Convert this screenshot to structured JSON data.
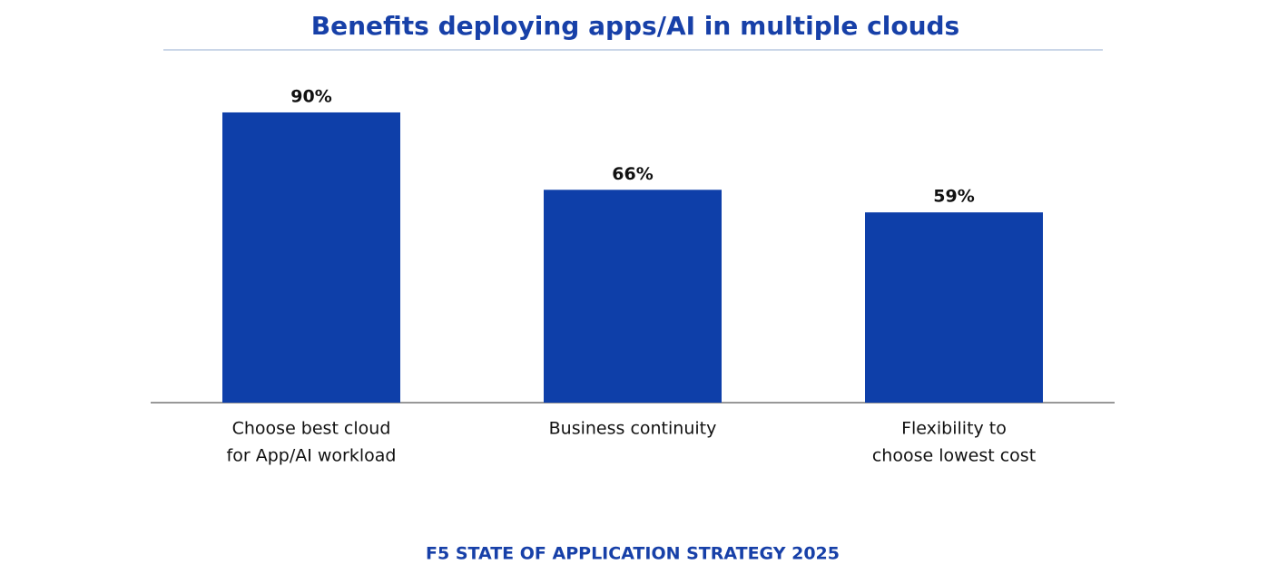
{
  "chart_data": {
    "type": "bar",
    "title": "Benefits deploying apps/AI in multiple clouds",
    "categories": [
      [
        "Choose best cloud",
        "for App/AI workload"
      ],
      [
        "Business continuity"
      ],
      [
        "Flexibility to",
        "choose lowest cost"
      ]
    ],
    "values": [
      90,
      66,
      59
    ],
    "value_labels": [
      "90%",
      "66%",
      "59%"
    ],
    "color": "#0e3fa9",
    "ylim": [
      0,
      100
    ],
    "footer": "F5 STATE OF APPLICATION STRATEGY 2025"
  }
}
